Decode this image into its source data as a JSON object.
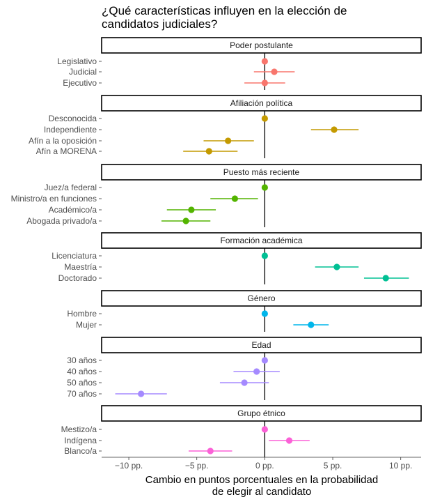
{
  "chart_data": {
    "type": "dot-whisker",
    "title": [
      "¿Qué características influyen en la elección de",
      "candidatos judiciales?"
    ],
    "xlabel": [
      "Cambio en puntos porcentuales en la probabilidad",
      "de elegir al candidato"
    ],
    "xlim": [
      -12,
      11.5
    ],
    "ticks": [
      {
        "value": -10,
        "label": "−10 pp."
      },
      {
        "value": -5,
        "label": "−5 pp."
      },
      {
        "value": 0,
        "label": "0 pp."
      },
      {
        "value": 5,
        "label": "5 pp."
      },
      {
        "value": 10,
        "label": "10 pp."
      }
    ],
    "panels": [
      {
        "title": "Poder postulante",
        "color": "#F8766D",
        "items": [
          {
            "label": "Legislativo",
            "est": 0,
            "lo": 0,
            "hi": 0
          },
          {
            "label": "Judicial",
            "est": 0.7,
            "lo": -0.8,
            "hi": 2.2
          },
          {
            "label": "Ejecutivo",
            "est": 0,
            "lo": -1.5,
            "hi": 1.5
          }
        ]
      },
      {
        "title": "Afiliación política",
        "color": "#C49A00",
        "items": [
          {
            "label": "Desconocida",
            "est": 0,
            "lo": 0,
            "hi": 0
          },
          {
            "label": "Independiente",
            "est": 5.1,
            "lo": 3.4,
            "hi": 6.9
          },
          {
            "label": "Afín a la oposición",
            "est": -2.7,
            "lo": -4.5,
            "hi": -0.8
          },
          {
            "label": "Afín a MORENA",
            "est": -4.1,
            "lo": -6.0,
            "hi": -2.0
          }
        ]
      },
      {
        "title": "Puesto más reciente",
        "color": "#53B400",
        "items": [
          {
            "label": "Juez/a federal",
            "est": 0,
            "lo": 0,
            "hi": 0
          },
          {
            "label": "Ministro/a en funciones",
            "est": -2.2,
            "lo": -4.0,
            "hi": -0.5
          },
          {
            "label": "Académico/a",
            "est": -5.4,
            "lo": -7.2,
            "hi": -3.6
          },
          {
            "label": "Abogada privado/a",
            "est": -5.8,
            "lo": -7.6,
            "hi": -4.0
          }
        ]
      },
      {
        "title": "Formación académica",
        "color": "#00C094",
        "items": [
          {
            "label": "Licenciatura",
            "est": 0,
            "lo": 0,
            "hi": 0
          },
          {
            "label": "Maestría",
            "est": 5.3,
            "lo": 3.7,
            "hi": 6.9
          },
          {
            "label": "Doctorado",
            "est": 8.9,
            "lo": 7.3,
            "hi": 10.6
          }
        ]
      },
      {
        "title": "Género",
        "color": "#00B6EB",
        "items": [
          {
            "label": "Hombre",
            "est": 0,
            "lo": 0,
            "hi": 0
          },
          {
            "label": "Mujer",
            "est": 3.4,
            "lo": 2.1,
            "hi": 4.7
          }
        ]
      },
      {
        "title": "Edad",
        "color": "#A58AFF",
        "items": [
          {
            "label": "30 años",
            "est": 0,
            "lo": 0,
            "hi": 0
          },
          {
            "label": "40 años",
            "est": -0.6,
            "lo": -2.3,
            "hi": 1.1
          },
          {
            "label": "50 años",
            "est": -1.5,
            "lo": -3.3,
            "hi": 0.3
          },
          {
            "label": "70 años",
            "est": -9.1,
            "lo": -11.0,
            "hi": -7.2
          }
        ]
      },
      {
        "title": "Grupo étnico",
        "color": "#FB61D7",
        "items": [
          {
            "label": "Mestizo/a",
            "est": 0,
            "lo": 0,
            "hi": 0
          },
          {
            "label": "Indígena",
            "est": 1.8,
            "lo": 0.3,
            "hi": 3.3
          },
          {
            "label": "Blanco/a",
            "est": -4.0,
            "lo": -5.6,
            "hi": -2.4
          }
        ]
      }
    ]
  }
}
